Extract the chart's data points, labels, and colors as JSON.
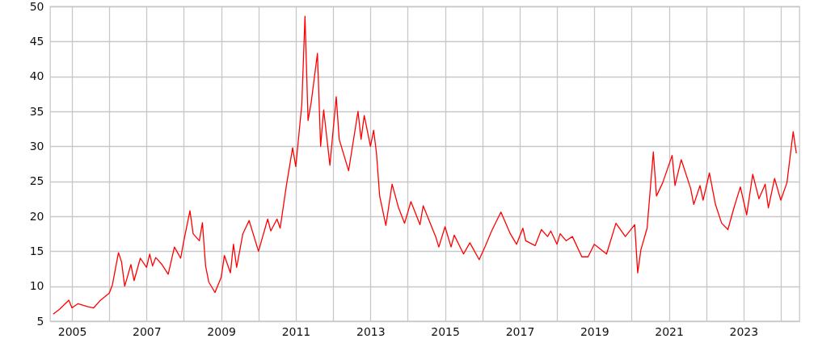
{
  "chart_data": {
    "type": "line",
    "x": [
      "2004-07",
      "2004-09",
      "2004-12",
      "2005-01",
      "2005-03",
      "2005-06",
      "2005-08",
      "2005-10",
      "2006-01",
      "2006-02",
      "2006-04",
      "2006-05",
      "2006-06",
      "2006-07",
      "2006-08",
      "2006-09",
      "2006-11",
      "2007-01",
      "2007-02",
      "2007-03",
      "2007-04",
      "2007-06",
      "2007-08",
      "2007-10",
      "2007-12",
      "2008-01",
      "2008-03",
      "2008-04",
      "2008-06",
      "2008-07",
      "2008-08",
      "2008-09",
      "2008-11",
      "2009-01",
      "2009-02",
      "2009-04",
      "2009-05",
      "2009-06",
      "2009-08",
      "2009-10",
      "2010-01",
      "2010-04",
      "2010-05",
      "2010-07",
      "2010-08",
      "2010-10",
      "2010-12",
      "2011-01",
      "2011-03",
      "2011-04",
      "2011-05",
      "2011-06",
      "2011-08",
      "2011-09",
      "2011-10",
      "2011-12",
      "2012-02",
      "2012-03",
      "2012-06",
      "2012-09",
      "2012-10",
      "2012-11",
      "2013-01",
      "2013-02",
      "2013-03",
      "2013-04",
      "2013-06",
      "2013-08",
      "2013-10",
      "2013-12",
      "2014-02",
      "2014-05",
      "2014-06",
      "2014-10",
      "2014-11",
      "2015-01",
      "2015-03",
      "2015-04",
      "2015-07",
      "2015-09",
      "2015-12",
      "2016-02",
      "2016-04",
      "2016-07",
      "2016-10",
      "2016-12",
      "2017-02",
      "2017-03",
      "2017-06",
      "2017-08",
      "2017-10",
      "2017-11",
      "2018-01",
      "2018-02",
      "2018-04",
      "2018-06",
      "2018-09",
      "2018-11",
      "2019-01",
      "2019-05",
      "2019-08",
      "2019-11",
      "2020-02",
      "2020-03",
      "2020-04",
      "2020-06",
      "2020-08",
      "2020-09",
      "2020-11",
      "2021-02",
      "2021-03",
      "2021-05",
      "2021-08",
      "2021-09",
      "2021-11",
      "2021-12",
      "2022-02",
      "2022-04",
      "2022-06",
      "2022-08",
      "2022-10",
      "2022-12",
      "2023-02",
      "2023-04",
      "2023-06",
      "2023-08",
      "2023-09",
      "2023-11",
      "2024-01",
      "2024-03",
      "2024-05",
      "2024-06"
    ],
    "series": [
      {
        "color": "#ff0000",
        "values": [
          6.0,
          6.7,
          8.0,
          6.9,
          7.5,
          7.1,
          6.9,
          7.9,
          9.0,
          10.2,
          14.8,
          13.5,
          10.0,
          11.5,
          13.1,
          10.8,
          14.0,
          12.7,
          14.6,
          12.9,
          14.1,
          13.1,
          11.7,
          15.6,
          14.0,
          16.5,
          20.8,
          17.5,
          16.5,
          19.1,
          12.9,
          10.6,
          9.1,
          11.3,
          14.4,
          11.9,
          16.0,
          12.7,
          17.5,
          19.4,
          15.0,
          19.6,
          17.9,
          19.6,
          18.3,
          24.4,
          29.8,
          27.1,
          36.0,
          48.6,
          33.7,
          36.3,
          43.3,
          30.0,
          35.2,
          27.3,
          37.1,
          31.0,
          26.5,
          35.0,
          31.0,
          34.4,
          30.0,
          32.3,
          29.0,
          22.9,
          18.7,
          24.6,
          21.3,
          19.0,
          22.1,
          18.8,
          21.5,
          17.1,
          15.6,
          18.5,
          15.6,
          17.3,
          14.6,
          16.2,
          13.8,
          15.8,
          17.9,
          20.6,
          17.5,
          16.0,
          18.3,
          16.5,
          15.8,
          18.1,
          17.1,
          17.9,
          16.0,
          17.5,
          16.5,
          17.1,
          14.2,
          14.2,
          16.0,
          14.6,
          19.0,
          17.1,
          18.8,
          11.9,
          15.2,
          18.3,
          29.2,
          22.9,
          24.8,
          28.7,
          24.4,
          28.1,
          24.0,
          21.7,
          24.4,
          22.3,
          26.2,
          21.7,
          19.0,
          18.1,
          21.3,
          24.2,
          20.2,
          26.0,
          22.5,
          24.6,
          21.2,
          25.4,
          22.3,
          24.8,
          32.1,
          29.0
        ]
      }
    ],
    "xlim": [
      "2004-06",
      "2024-07"
    ],
    "xticks": [
      "2005",
      {
        "value": "2006",
        "label": null
      },
      "2007",
      {
        "value": "2008",
        "label": null
      },
      "2009",
      {
        "value": "2010",
        "label": null
      },
      "2011",
      {
        "value": "2012",
        "label": null
      },
      "2013",
      {
        "value": "2014",
        "label": null
      },
      "2015",
      {
        "value": "2016",
        "label": null
      },
      "2017",
      {
        "value": "2018",
        "label": null
      },
      "2019",
      {
        "value": "2020",
        "label": null
      },
      "2021",
      {
        "value": "2022",
        "label": null
      },
      "2023",
      {
        "value": "2024",
        "label": null
      }
    ],
    "ylim": [
      5,
      50
    ],
    "yticks": [
      5,
      10,
      15,
      20,
      25,
      30,
      35,
      40,
      45,
      50
    ],
    "grid": true,
    "line_style": "solid"
  }
}
